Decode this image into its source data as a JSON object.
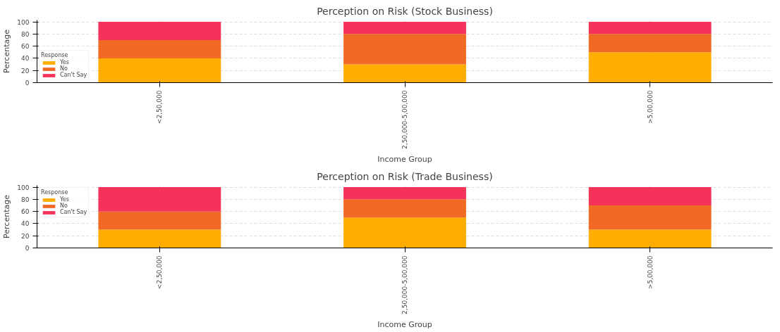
{
  "chart_data": [
    {
      "type": "bar",
      "stacked": true,
      "title": "Perception on Risk (Stock Business)",
      "xlabel": "Income Group",
      "ylabel": "Percentage",
      "legend_title": "Response",
      "categories": [
        "<2,50,000",
        "2,50,000-5,00,000",
        ">5,00,000"
      ],
      "series": [
        {
          "name": "Yes",
          "color": "#ffad00",
          "values": [
            40,
            30,
            50
          ]
        },
        {
          "name": "No",
          "color": "#f06a25",
          "values": [
            30,
            50,
            30
          ]
        },
        {
          "name": "Can't Say",
          "color": "#f5325a",
          "values": [
            30,
            20,
            20
          ]
        }
      ],
      "ylim": [
        0,
        103
      ],
      "yticks": [
        0,
        20,
        40,
        60,
        80,
        100
      ],
      "grid": true,
      "legend": "bottom left"
    },
    {
      "type": "bar",
      "stacked": true,
      "title": "Perception on Risk (Trade Business)",
      "xlabel": "Income Group",
      "ylabel": "Percentage",
      "legend_title": "Response",
      "categories": [
        "<2,50,000",
        "2,50,000-5,00,000",
        ">5,00,000"
      ],
      "series": [
        {
          "name": "Yes",
          "color": "#ffad00",
          "values": [
            30,
            50,
            30
          ]
        },
        {
          "name": "No",
          "color": "#f06a25",
          "values": [
            30,
            30,
            40
          ]
        },
        {
          "name": "Can't Say",
          "color": "#f5325a",
          "values": [
            40,
            20,
            30
          ]
        }
      ],
      "ylim": [
        0,
        103
      ],
      "yticks": [
        0,
        20,
        40,
        60,
        80,
        100
      ],
      "grid": true,
      "legend": "top left"
    }
  ]
}
